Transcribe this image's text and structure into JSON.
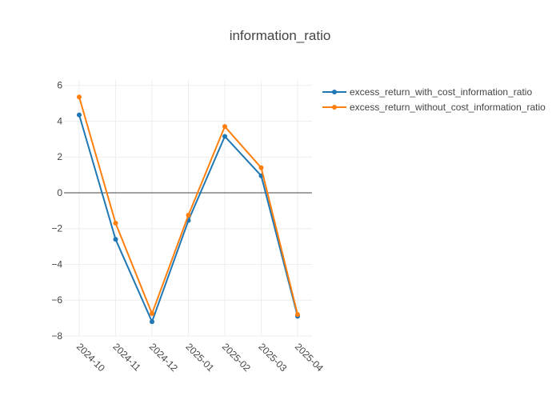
{
  "chart_data": {
    "type": "line",
    "title": "information_ratio",
    "xlabel": "",
    "ylabel": "",
    "categories": [
      "2024-10",
      "2024-11",
      "2024-12",
      "2025-01",
      "2025-02",
      "2025-03",
      "2025-04"
    ],
    "ylim": [
      -8,
      6.3
    ],
    "yticks": [
      -8,
      -6,
      -4,
      -2,
      0,
      2,
      4,
      6
    ],
    "grid": true,
    "zero_line": true,
    "legend_position": "top-right",
    "series": [
      {
        "name": "excess_return_with_cost_information_ratio",
        "color": "#1f77b4",
        "values": [
          4.35,
          -2.6,
          -7.2,
          -1.55,
          3.15,
          0.95,
          -6.9
        ]
      },
      {
        "name": "excess_return_without_cost_information_ratio",
        "color": "#ff7f0e",
        "values": [
          5.35,
          -1.7,
          -6.75,
          -1.25,
          3.7,
          1.4,
          -6.8
        ]
      }
    ]
  }
}
